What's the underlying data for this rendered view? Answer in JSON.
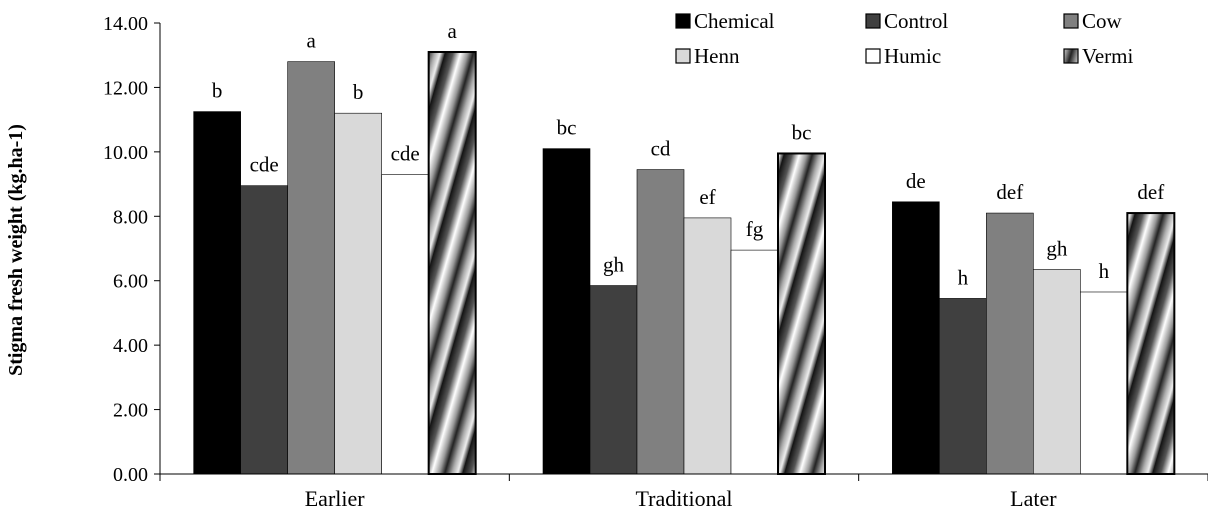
{
  "chart_data": {
    "type": "bar",
    "title": "",
    "xlabel": "",
    "ylabel": "Stigma fresh weight (kg.ha-1)",
    "ylim": [
      0,
      14
    ],
    "yticks": [
      "0.00",
      "2.00",
      "4.00",
      "6.00",
      "8.00",
      "10.00",
      "12.00",
      "14.00"
    ],
    "categories": [
      "Earlier",
      "Traditional",
      "Later"
    ],
    "legend_position": "top-right",
    "series": [
      {
        "name": "Chemical",
        "color": "#000000",
        "values": [
          11.25,
          10.1,
          8.45
        ],
        "labels": [
          "b",
          "bc",
          "de"
        ]
      },
      {
        "name": "Control",
        "color": "#404040",
        "values": [
          8.95,
          5.85,
          5.45
        ],
        "labels": [
          "cde",
          "gh",
          "h"
        ]
      },
      {
        "name": "Cow",
        "color": "#808080",
        "values": [
          12.8,
          9.45,
          8.1
        ],
        "labels": [
          "a",
          "cd",
          "def"
        ]
      },
      {
        "name": "Henn",
        "color": "#d9d9d9",
        "values": [
          11.2,
          7.95,
          6.35
        ],
        "labels": [
          "b",
          "ef",
          "gh"
        ]
      },
      {
        "name": "Humic",
        "color": "#ffffff",
        "values": [
          9.3,
          6.95,
          5.65
        ],
        "labels": [
          "cde",
          "fg",
          "h"
        ]
      },
      {
        "name": "Vermi",
        "color": "pattern-diagonal-gradient",
        "values": [
          13.1,
          9.95,
          8.1
        ],
        "labels": [
          "a",
          "bc",
          "def"
        ]
      }
    ]
  }
}
